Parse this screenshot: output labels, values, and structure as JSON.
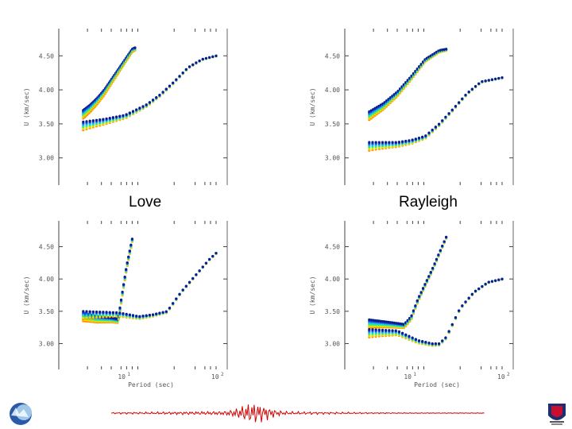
{
  "labels": {
    "left": "Love",
    "right": "Rayleigh"
  },
  "axis_text": {
    "ylabel": "U (km/sec)",
    "xlabel": "Period (sec)",
    "x_exp": "10",
    "x_sup": "2",
    "x_mid": "10",
    "x_mid_sup": "1"
  },
  "chart_data": [
    {
      "type": "scatter",
      "yticks": [
        "4.50",
        "4.00",
        "3.50",
        "3.00"
      ],
      "series": [
        {
          "x": [
            0.05,
            0.1,
            0.15,
            0.2,
            0.25,
            0.3,
            0.35,
            0.4,
            0.42
          ],
          "y": [
            3.7,
            3.78,
            3.88,
            4.0,
            4.15,
            4.3,
            4.45,
            4.6,
            4.62
          ]
        },
        {
          "x": [
            0.05,
            0.2,
            0.35,
            0.5,
            0.6,
            0.7,
            0.8,
            0.9,
            1.0
          ],
          "y": [
            3.53,
            3.57,
            3.63,
            3.78,
            3.93,
            4.12,
            4.33,
            4.45,
            4.5
          ]
        }
      ]
    },
    {
      "type": "scatter",
      "yticks": [
        "4.50",
        "4.00",
        "3.50",
        "3.00"
      ],
      "series": [
        {
          "x": [
            0.05,
            0.15,
            0.25,
            0.35,
            0.45,
            0.55,
            0.6
          ],
          "y": [
            3.68,
            3.8,
            3.97,
            4.2,
            4.45,
            4.58,
            4.6
          ]
        },
        {
          "x": [
            0.05,
            0.25,
            0.35,
            0.45,
            0.55,
            0.65,
            0.75,
            0.85,
            1.0
          ],
          "y": [
            3.23,
            3.23,
            3.26,
            3.32,
            3.5,
            3.72,
            3.95,
            4.12,
            4.18
          ]
        }
      ]
    },
    {
      "type": "scatter",
      "yticks": [
        "4.50",
        "4.00",
        "3.50",
        "3.00"
      ],
      "series": [
        {
          "x": [
            0.05,
            0.15,
            0.25,
            0.3,
            0.33,
            0.36,
            0.4
          ],
          "y": [
            3.47,
            3.42,
            3.4,
            3.38,
            3.8,
            4.2,
            4.62
          ]
        },
        {
          "x": [
            0.05,
            0.3,
            0.45,
            0.55,
            0.65,
            0.75,
            0.85,
            0.95,
            1.0
          ],
          "y": [
            3.5,
            3.48,
            3.42,
            3.45,
            3.5,
            3.8,
            4.05,
            4.3,
            4.4
          ]
        }
      ]
    },
    {
      "type": "scatter",
      "yticks": [
        "4.50",
        "4.00",
        "3.50",
        "3.00"
      ],
      "series": [
        {
          "x": [
            0.05,
            0.2,
            0.3,
            0.35,
            0.4,
            0.5,
            0.6
          ],
          "y": [
            3.37,
            3.33,
            3.3,
            3.42,
            3.7,
            4.15,
            4.65
          ]
        },
        {
          "x": [
            0.05,
            0.25,
            0.4,
            0.5,
            0.55,
            0.6,
            0.7,
            0.8,
            0.9,
            1.0
          ],
          "y": [
            3.22,
            3.2,
            3.05,
            3.0,
            3.0,
            3.1,
            3.55,
            3.8,
            3.95,
            4.0
          ]
        }
      ]
    }
  ]
}
